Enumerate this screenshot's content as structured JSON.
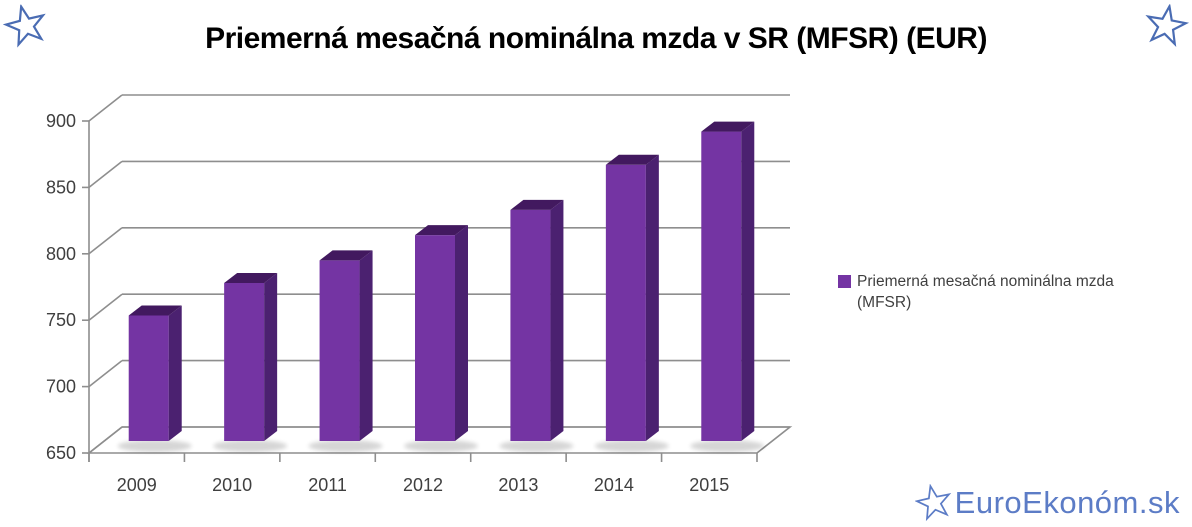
{
  "chart_data": {
    "type": "bar",
    "style_3d": true,
    "title": "Priemerná mesačná nominálna mzda v SR (MFSR) (EUR)",
    "categories": [
      "2009",
      "2010",
      "2011",
      "2012",
      "2013",
      "2014",
      "2015"
    ],
    "series": [
      {
        "name": "Priemerná mesačná nominálna mzda (MFSR)",
        "values": [
          744.5,
          769,
          786,
          805,
          824,
          858,
          883
        ]
      }
    ],
    "xlabel": "",
    "ylabel": "",
    "ylim": [
      650,
      900
    ],
    "ytick_step": 50,
    "yticks": [
      "650",
      "700",
      "750",
      "800",
      "850",
      "900"
    ],
    "grid": true,
    "legend_position": "right",
    "bar_color": "#7434A3",
    "bar_side_color": "#4B2170",
    "bar_top_color": "#42195F",
    "axis_color": "#8E8E8E",
    "label_color": "#3F3F3F"
  },
  "watermark": {
    "text": "EuroEkonóm.sk",
    "color": "#5C7CC6"
  },
  "decorations": {
    "star_color": "#4A6CB3"
  }
}
